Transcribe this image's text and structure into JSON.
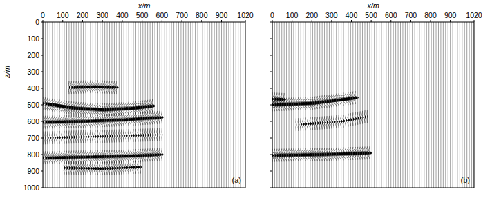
{
  "chart_data": [
    {
      "type": "wiggle",
      "xlabel": "x/m",
      "ylabel": "z/m",
      "panel_label": "(a)",
      "xlim": [
        0,
        1020
      ],
      "ylim": [
        1000,
        0
      ],
      "xticks": [
        0,
        100,
        200,
        300,
        400,
        500,
        600,
        700,
        800,
        900,
        1020
      ],
      "yticks": [
        0,
        100,
        200,
        300,
        400,
        500,
        600,
        700,
        800,
        900,
        1000
      ],
      "tick_labels": true,
      "color": "#000000",
      "trace_x": [
        0,
        12,
        24,
        36,
        48,
        60,
        72,
        84,
        96,
        108,
        120,
        132,
        144,
        156,
        168,
        180,
        192,
        204,
        216,
        228,
        240,
        252,
        264,
        276,
        288,
        300,
        312,
        324,
        336,
        348,
        360,
        372,
        384,
        396,
        408,
        420,
        432,
        444,
        456,
        468,
        480,
        492,
        504,
        516,
        528,
        540,
        552,
        564,
        576,
        588,
        600,
        612,
        624,
        636,
        648,
        660,
        672,
        684,
        696,
        708,
        720,
        732,
        744,
        756,
        768,
        780,
        792,
        804,
        816,
        828,
        840,
        852,
        864,
        876,
        888,
        900,
        912,
        924,
        936,
        948,
        960,
        972,
        984,
        996,
        1008,
        1020
      ],
      "events": [
        {
          "x": [
            130,
            250,
            380
          ],
          "z": [
            395,
            390,
            395
          ],
          "amplitude": 0.6
        },
        {
          "x": [
            0,
            150,
            300,
            450,
            560
          ],
          "z": [
            492,
            520,
            530,
            520,
            505
          ],
          "amplitude": 1
        },
        {
          "x": [
            0,
            200,
            400,
            600
          ],
          "z": [
            605,
            600,
            590,
            575
          ],
          "amplitude": 0.8
        },
        {
          "x": [
            0,
            300,
            600
          ],
          "z": [
            700,
            690,
            680
          ],
          "amplitude": 0.2
        },
        {
          "x": [
            0,
            200,
            400,
            600
          ],
          "z": [
            820,
            815,
            810,
            800
          ],
          "amplitude": 0.7
        },
        {
          "x": [
            100,
            300,
            500
          ],
          "z": [
            880,
            885,
            875
          ],
          "amplitude": 0.4
        }
      ]
    },
    {
      "type": "wiggle",
      "xlabel": "x/m",
      "panel_label": "(b)",
      "xlim": [
        0,
        1020
      ],
      "ylim": [
        1000,
        0
      ],
      "xticks": [
        0,
        100,
        200,
        300,
        400,
        500,
        600,
        700,
        800,
        900,
        1020
      ],
      "yticks": [
        0,
        100,
        200,
        300,
        400,
        500,
        600,
        700,
        800,
        900,
        1000
      ],
      "tick_labels": "x",
      "color": "#000000",
      "trace_x": [
        0,
        12,
        24,
        36,
        48,
        60,
        72,
        84,
        96,
        108,
        120,
        132,
        144,
        156,
        168,
        180,
        192,
        204,
        216,
        228,
        240,
        252,
        264,
        276,
        288,
        300,
        312,
        324,
        336,
        348,
        360,
        372,
        384,
        396,
        408,
        420,
        432,
        444,
        456,
        468,
        480,
        492,
        504,
        516,
        528,
        540,
        552,
        564,
        576,
        588,
        600,
        612,
        624,
        636,
        648,
        660,
        672,
        684,
        696,
        708,
        720,
        732,
        744,
        756,
        768,
        780,
        792,
        804,
        816,
        828,
        840,
        852,
        864,
        876,
        888,
        900,
        912,
        924,
        936,
        948,
        960,
        972,
        984,
        996,
        1008,
        1020
      ],
      "events": [
        {
          "x": [
            0,
            60
          ],
          "z": [
            465,
            468
          ],
          "amplitude": 0.9
        },
        {
          "x": [
            0,
            200,
            430
          ],
          "z": [
            500,
            490,
            455
          ],
          "amplitude": 1
        },
        {
          "x": [
            120,
            350,
            480
          ],
          "z": [
            620,
            600,
            570
          ],
          "amplitude": 0.25
        },
        {
          "x": [
            0,
            250,
            500
          ],
          "z": [
            805,
            800,
            790
          ],
          "amplitude": 0.9
        }
      ]
    }
  ]
}
